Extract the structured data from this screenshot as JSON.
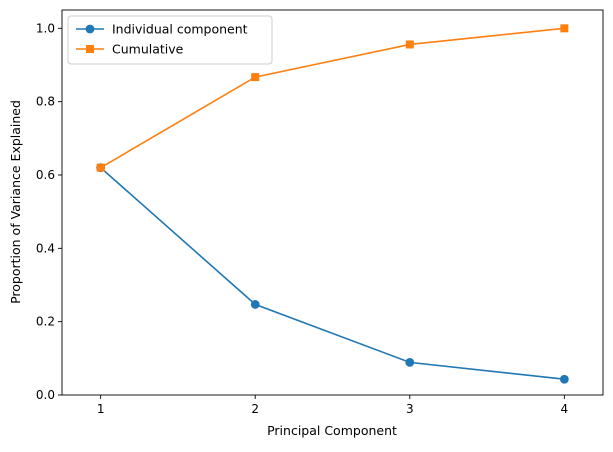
{
  "chart_data": {
    "type": "line",
    "title": "",
    "xlabel": "Principal Component",
    "ylabel": "Proportion of Variance Explained",
    "x": [
      1,
      2,
      3,
      4
    ],
    "xlim": [
      0.75,
      4.25
    ],
    "ylim": [
      0.0,
      1.05
    ],
    "xticks": [
      1,
      2,
      3,
      4
    ],
    "xtick_labels": [
      "1",
      "2",
      "3",
      "4"
    ],
    "yticks": [
      0.0,
      0.2,
      0.4,
      0.6,
      0.8,
      1.0
    ],
    "ytick_labels": [
      "0.0",
      "0.2",
      "0.4",
      "0.6",
      "0.8",
      "1.0"
    ],
    "grid": false,
    "legend_position": "upper-left",
    "series": [
      {
        "name": "Individual component",
        "values": [
          0.62,
          0.247,
          0.089,
          0.043
        ],
        "color": "#1f77b4",
        "marker": "circle"
      },
      {
        "name": "Cumulative",
        "values": [
          0.62,
          0.867,
          0.956,
          1.0
        ],
        "color": "#ff7f0e",
        "marker": "square"
      }
    ]
  }
}
